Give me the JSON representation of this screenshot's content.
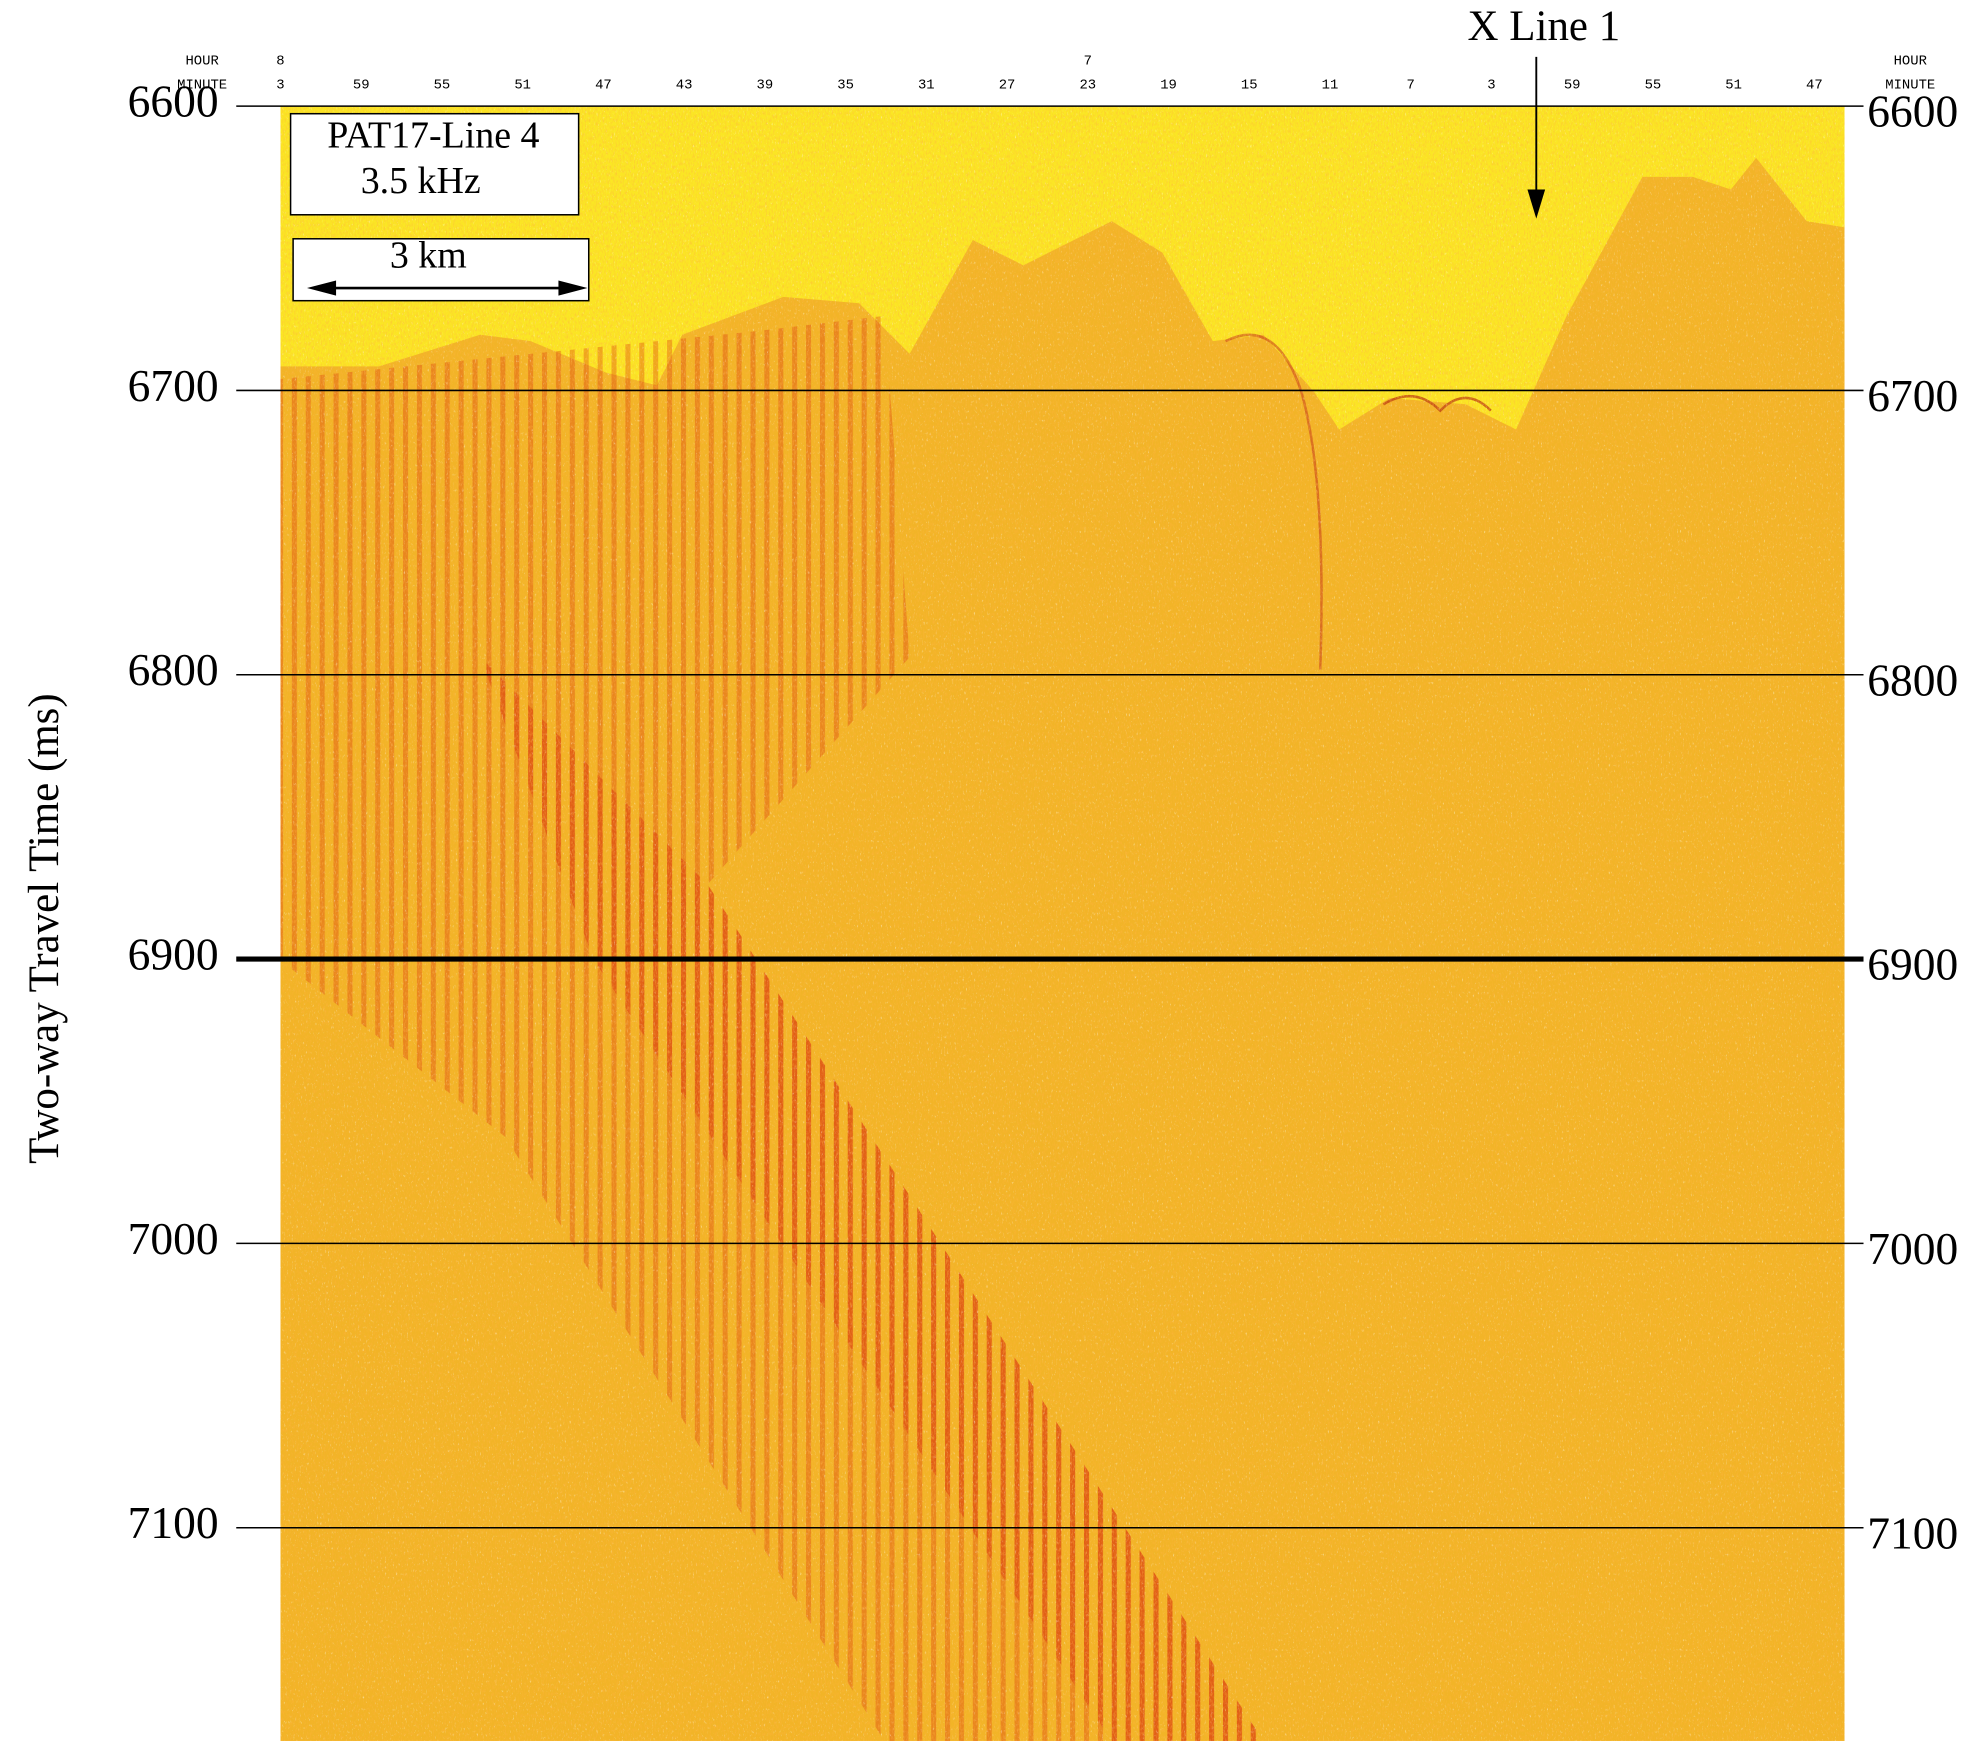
{
  "chart_data": {
    "type": "seismic",
    "annotations": {
      "profile": "PAT17-Line 4",
      "frequency": "3.5 kHz",
      "scale_bar": "3 km",
      "crossing": "X Line 1"
    },
    "y_label": "Two-way Travel Time (ms)",
    "ylim": [
      6600,
      7175
    ],
    "yticks": [
      6600,
      6700,
      6800,
      6900,
      7000,
      7100
    ],
    "bold_tick": 6900,
    "top_axis": {
      "hour_title": "HOUR",
      "minute_title": "MINUTE",
      "hours": [
        "8",
        null,
        null,
        null,
        null,
        null,
        null,
        null,
        null,
        null,
        "7",
        null,
        null,
        null,
        null,
        null,
        null,
        null,
        null,
        null
      ],
      "minutes": [
        "3",
        "59",
        "55",
        "51",
        "47",
        "43",
        "39",
        "35",
        "31",
        "27",
        "23",
        "19",
        "15",
        "11",
        "7",
        "3",
        "59",
        "55",
        "51",
        "47"
      ]
    },
    "grid": true
  }
}
